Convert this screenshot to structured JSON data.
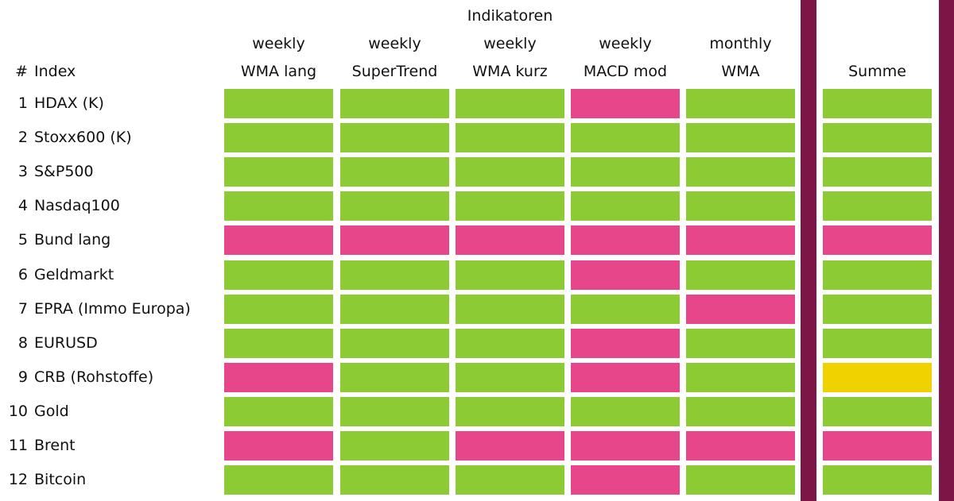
{
  "header": {
    "title": "Indikatoren",
    "number_label": "#",
    "index_label": "Index",
    "columns": [
      [
        "weekly",
        "WMA lang"
      ],
      [
        "weekly",
        "SuperTrend"
      ],
      [
        "weekly",
        "WMA kurz"
      ],
      [
        "weekly",
        "MACD mod"
      ],
      [
        "monthly",
        "WMA"
      ]
    ],
    "sum_label": "Summe"
  },
  "divider_color": "#7e1547",
  "table": {
    "rows": [
      [
        "1",
        "HDAX (K)",
        [
          "#8dcb34",
          "#8dcb34",
          "#8dcb34",
          "#e8468a",
          "#8dcb34"
        ],
        "#8dcb34"
      ],
      [
        "2",
        "Stoxx600 (K)",
        [
          "#8dcb34",
          "#8dcb34",
          "#8dcb34",
          "#8dcb34",
          "#8dcb34"
        ],
        "#8dcb34"
      ],
      [
        "3",
        "S&P500",
        [
          "#8dcb34",
          "#8dcb34",
          "#8dcb34",
          "#8dcb34",
          "#8dcb34"
        ],
        "#8dcb34"
      ],
      [
        "4",
        "Nasdaq100",
        [
          "#8dcb34",
          "#8dcb34",
          "#8dcb34",
          "#8dcb34",
          "#8dcb34"
        ],
        "#8dcb34"
      ],
      [
        "5",
        "Bund lang",
        [
          "#e8468a",
          "#e8468a",
          "#e8468a",
          "#e8468a",
          "#e8468a"
        ],
        "#e8468a"
      ],
      [
        "6",
        "Geldmarkt",
        [
          "#8dcb34",
          "#8dcb34",
          "#8dcb34",
          "#e8468a",
          "#8dcb34"
        ],
        "#8dcb34"
      ],
      [
        "7",
        "EPRA (Immo Europa)",
        [
          "#8dcb34",
          "#8dcb34",
          "#8dcb34",
          "#8dcb34",
          "#e8468a"
        ],
        "#8dcb34"
      ],
      [
        "8",
        "EURUSD",
        [
          "#8dcb34",
          "#8dcb34",
          "#8dcb34",
          "#e8468a",
          "#8dcb34"
        ],
        "#8dcb34"
      ],
      [
        "9",
        "CRB (Rohstoffe)",
        [
          "#e8468a",
          "#8dcb34",
          "#8dcb34",
          "#e8468a",
          "#8dcb34"
        ],
        "#efd200"
      ],
      [
        "10",
        "Gold",
        [
          "#8dcb34",
          "#8dcb34",
          "#8dcb34",
          "#8dcb34",
          "#8dcb34"
        ],
        "#8dcb34"
      ],
      [
        "11",
        "Brent",
        [
          "#e8468a",
          "#8dcb34",
          "#e8468a",
          "#e8468a",
          "#e8468a"
        ],
        "#e8468a"
      ],
      [
        "12",
        "Bitcoin",
        [
          "#8dcb34",
          "#8dcb34",
          "#8dcb34",
          "#e8468a",
          "#8dcb34"
        ],
        "#8dcb34"
      ]
    ]
  }
}
